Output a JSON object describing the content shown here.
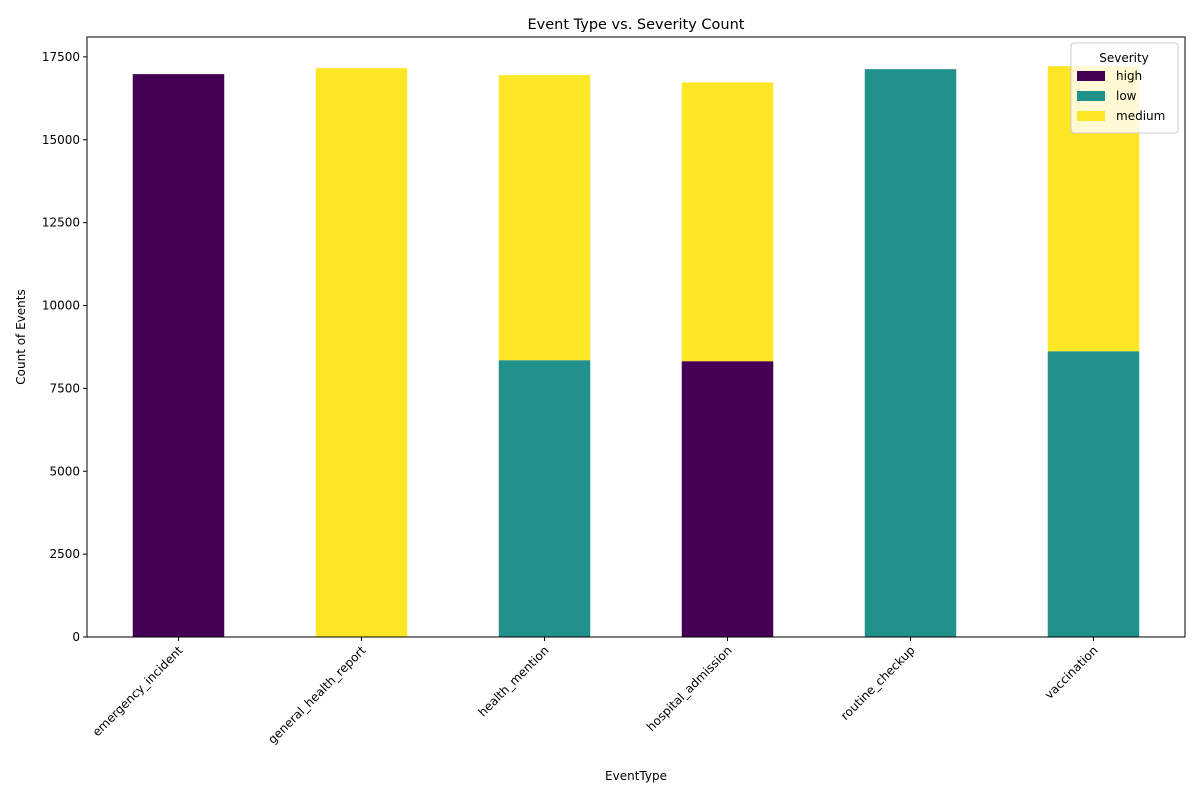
{
  "chart_data": {
    "type": "bar",
    "stacked": true,
    "title": "Event Type vs. Severity Count",
    "xlabel": "EventType",
    "ylabel": "Count of Events",
    "ylim": [
      0,
      18100
    ],
    "yticks": [
      0,
      2500,
      5000,
      7500,
      10000,
      12500,
      15000,
      17500
    ],
    "categories": [
      "emergency_incident",
      "general_health_report",
      "health_mention",
      "hospital_admission",
      "routine_checkup",
      "vaccination"
    ],
    "series": [
      {
        "name": "high",
        "color": "#440154",
        "values": [
          16980,
          0,
          0,
          8320,
          0,
          0
        ]
      },
      {
        "name": "low",
        "color": "#21918c",
        "values": [
          0,
          0,
          8350,
          0,
          17130,
          8620
        ]
      },
      {
        "name": "medium",
        "color": "#fde725",
        "values": [
          0,
          17160,
          8600,
          8410,
          0,
          8600
        ]
      }
    ],
    "legend": {
      "title": "Severity",
      "placement": "top-right"
    },
    "grid": false,
    "xtick_rotation": 45
  }
}
